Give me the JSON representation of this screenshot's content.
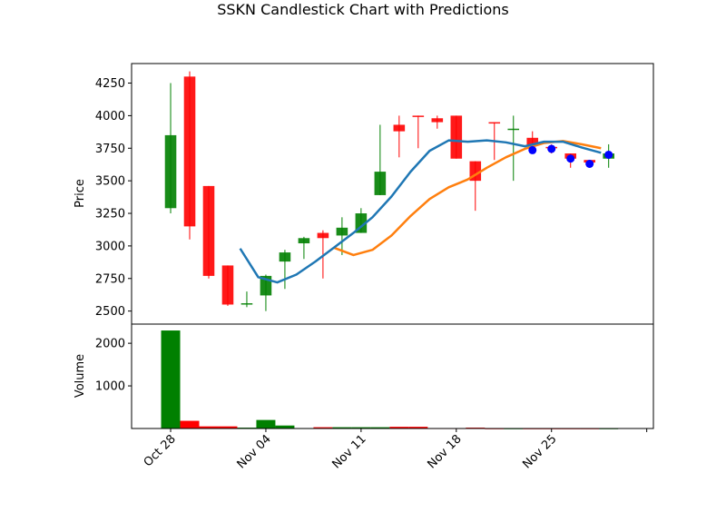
{
  "chart_data": {
    "type": "candlestick",
    "title": "SSKN Candlestick Chart with Predictions",
    "colors": {
      "up": "#008000",
      "down": "#ff0000",
      "ma_short": "#1f77b4",
      "ma_long": "#ff7f0e",
      "prediction": "#0000ff"
    },
    "price_panel": {
      "ylabel": "Price",
      "ylim": [
        2400,
        4400
      ],
      "yticks": [
        2500,
        2750,
        3000,
        3250,
        3500,
        3750,
        4000,
        4250
      ],
      "ytick_labels": [
        "2500",
        "2750",
        "3000",
        "3250",
        "3500",
        "3750",
        "4000",
        "4250"
      ]
    },
    "volume_panel": {
      "ylabel": "Volume",
      "ylim": [
        0,
        2450
      ],
      "yticks": [
        1000,
        2000
      ],
      "ytick_labels": [
        "1000",
        "2000"
      ]
    },
    "xticks": [
      {
        "index": 0,
        "label": "Oct 28"
      },
      {
        "index": 5,
        "label": "Nov 04"
      },
      {
        "index": 10,
        "label": "Nov 11"
      },
      {
        "index": 15,
        "label": "Nov 18"
      },
      {
        "index": 20,
        "label": "Nov 25"
      }
    ],
    "extra_xtick_index": 25,
    "x_range": [
      -2.05,
      25.35
    ],
    "candles": [
      {
        "date": "2024-10-28",
        "open": 3290,
        "high": 4250,
        "low": 3250,
        "close": 3850,
        "volume": 2300
      },
      {
        "date": "2024-10-29",
        "open": 4300,
        "high": 4340,
        "low": 3050,
        "close": 3150,
        "volume": 180
      },
      {
        "date": "2024-10-30",
        "open": 3460,
        "high": 3460,
        "low": 2750,
        "close": 2770,
        "volume": 50
      },
      {
        "date": "2024-10-31",
        "open": 2850,
        "high": 2850,
        "low": 2540,
        "close": 2550,
        "volume": 50
      },
      {
        "date": "2024-11-01",
        "open": 2550,
        "high": 2650,
        "low": 2530,
        "close": 2560,
        "volume": 20
      },
      {
        "date": "2024-11-04",
        "open": 2620,
        "high": 2780,
        "low": 2500,
        "close": 2770,
        "volume": 200
      },
      {
        "date": "2024-11-05",
        "open": 2880,
        "high": 2970,
        "low": 2670,
        "close": 2950,
        "volume": 70
      },
      {
        "date": "2024-11-06",
        "open": 3020,
        "high": 3070,
        "low": 2900,
        "close": 3060,
        "volume": 10
      },
      {
        "date": "2024-11-07",
        "open": 3100,
        "high": 3120,
        "low": 2750,
        "close": 3060,
        "volume": 30
      },
      {
        "date": "2024-11-08",
        "open": 3080,
        "high": 3220,
        "low": 2930,
        "close": 3140,
        "volume": 30
      },
      {
        "date": "2024-11-11",
        "open": 3100,
        "high": 3290,
        "low": 3100,
        "close": 3250,
        "volume": 30
      },
      {
        "date": "2024-11-12",
        "open": 3390,
        "high": 3930,
        "low": 3390,
        "close": 3570,
        "volume": 30
      },
      {
        "date": "2024-11-13",
        "open": 3930,
        "high": 4000,
        "low": 3680,
        "close": 3880,
        "volume": 40
      },
      {
        "date": "2024-11-14",
        "open": 4000,
        "high": 4000,
        "low": 3750,
        "close": 3990,
        "volume": 40
      },
      {
        "date": "2024-11-15",
        "open": 3980,
        "high": 4000,
        "low": 3900,
        "close": 3950,
        "volume": 10
      },
      {
        "date": "2024-11-18",
        "open": 4000,
        "high": 4000,
        "low": 3670,
        "close": 3670,
        "volume": 10
      },
      {
        "date": "2024-11-19",
        "open": 3650,
        "high": 3650,
        "low": 3270,
        "close": 3500,
        "volume": 20
      },
      {
        "date": "2024-11-20",
        "open": 3950,
        "high": 3950,
        "low": 3660,
        "close": 3940,
        "volume": 5
      },
      {
        "date": "2024-11-21",
        "open": 3890,
        "high": 4000,
        "low": 3500,
        "close": 3900,
        "volume": 5
      },
      {
        "date": "2024-11-22",
        "open": 3830,
        "high": 3880,
        "low": 3720,
        "close": 3770,
        "volume": 5
      },
      {
        "date": "2024-11-25",
        "open": 3760,
        "high": 3780,
        "low": 3710,
        "close": 3750,
        "volume": 5
      },
      {
        "date": "2024-11-26",
        "open": 3710,
        "high": 3710,
        "low": 3600,
        "close": 3670,
        "volume": 5
      },
      {
        "date": "2024-11-27",
        "open": 3660,
        "high": 3660,
        "low": 3610,
        "close": 3640,
        "volume": 5
      },
      {
        "date": "2024-11-28",
        "open": 3670,
        "high": 3780,
        "low": 3600,
        "close": 3710,
        "volume": 5
      }
    ],
    "ma_short": [
      {
        "x": 3.65,
        "y": 2980
      },
      {
        "x": 4.6,
        "y": 2760
      },
      {
        "x": 5.6,
        "y": 2720
      },
      {
        "x": 6.6,
        "y": 2780
      },
      {
        "x": 7.6,
        "y": 2880
      },
      {
        "x": 8.6,
        "y": 2990
      },
      {
        "x": 9.6,
        "y": 3100
      },
      {
        "x": 10.6,
        "y": 3220
      },
      {
        "x": 11.6,
        "y": 3380
      },
      {
        "x": 12.6,
        "y": 3570
      },
      {
        "x": 13.6,
        "y": 3730
      },
      {
        "x": 14.6,
        "y": 3810
      },
      {
        "x": 15.6,
        "y": 3800
      },
      {
        "x": 16.6,
        "y": 3810
      },
      {
        "x": 17.6,
        "y": 3795
      },
      {
        "x": 18.6,
        "y": 3765
      },
      {
        "x": 19.6,
        "y": 3800
      },
      {
        "x": 20.6,
        "y": 3800
      },
      {
        "x": 21.6,
        "y": 3755
      },
      {
        "x": 22.6,
        "y": 3715
      }
    ],
    "ma_long": [
      {
        "x": 8.6,
        "y": 2985
      },
      {
        "x": 9.6,
        "y": 2930
      },
      {
        "x": 10.6,
        "y": 2970
      },
      {
        "x": 11.6,
        "y": 3080
      },
      {
        "x": 12.6,
        "y": 3230
      },
      {
        "x": 13.6,
        "y": 3360
      },
      {
        "x": 14.6,
        "y": 3450
      },
      {
        "x": 15.6,
        "y": 3510
      },
      {
        "x": 16.6,
        "y": 3600
      },
      {
        "x": 17.6,
        "y": 3680
      },
      {
        "x": 18.6,
        "y": 3745
      },
      {
        "x": 19.6,
        "y": 3790
      },
      {
        "x": 20.6,
        "y": 3805
      },
      {
        "x": 21.6,
        "y": 3780
      },
      {
        "x": 22.6,
        "y": 3750
      }
    ],
    "predictions": [
      {
        "x": 19.0,
        "y": 3735
      },
      {
        "x": 20.0,
        "y": 3745
      },
      {
        "x": 21.0,
        "y": 3670
      },
      {
        "x": 22.0,
        "y": 3630
      },
      {
        "x": 23.0,
        "y": 3700
      }
    ]
  }
}
